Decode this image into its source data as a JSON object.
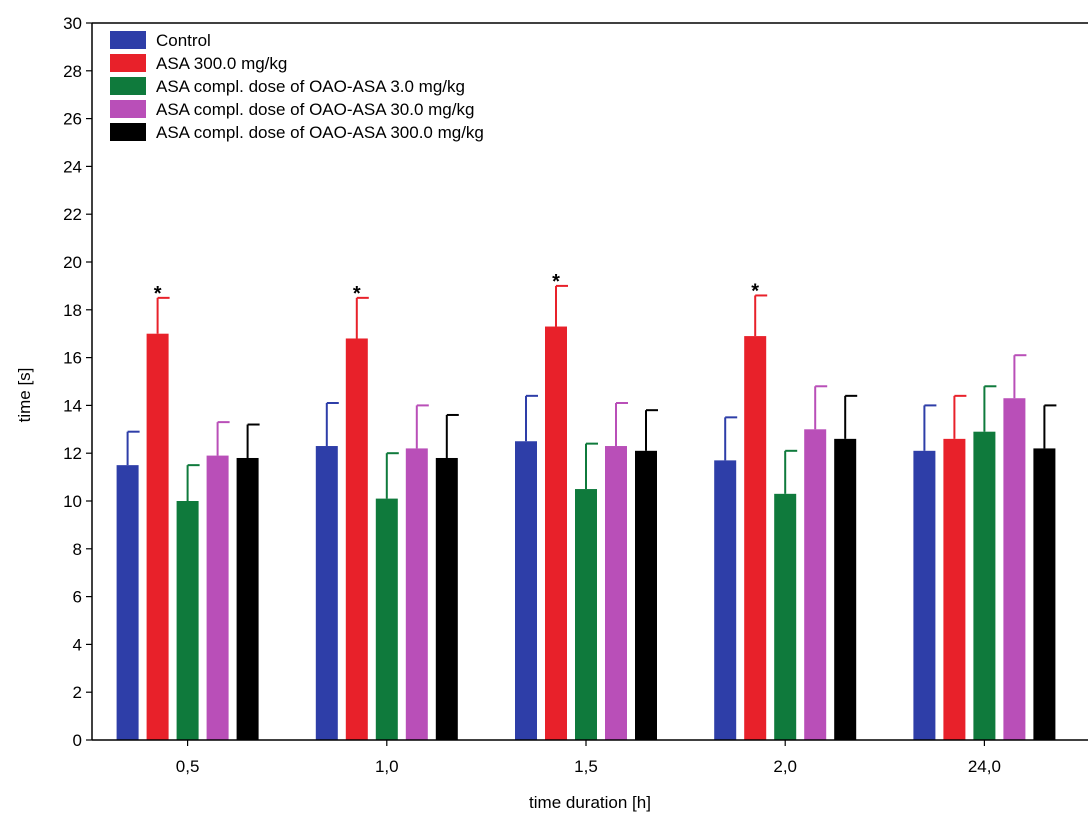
{
  "chart_data": {
    "type": "bar",
    "xlabel": "time duration [h]",
    "ylabel": "time [s]",
    "ylim": [
      0,
      30
    ],
    "yticks": [
      0,
      2,
      4,
      6,
      8,
      10,
      12,
      14,
      16,
      18,
      20,
      22,
      24,
      26,
      28,
      30
    ],
    "categories": [
      "0,5",
      "1,0",
      "1,5",
      "2,0",
      "24,0"
    ],
    "legend_position": "top-left",
    "grid": false,
    "significance_marker": "*",
    "series": [
      {
        "name": "Control",
        "color": "#2e3ea8",
        "values": [
          11.5,
          12.3,
          12.5,
          11.7,
          12.1
        ],
        "errors": [
          1.4,
          1.8,
          1.9,
          1.8,
          1.9
        ],
        "significant": [
          false,
          false,
          false,
          false,
          false
        ]
      },
      {
        "name": "ASA 300.0 mg/kg",
        "color": "#e8212a",
        "values": [
          17.0,
          16.8,
          17.3,
          16.9,
          12.6
        ],
        "errors": [
          1.5,
          1.7,
          1.7,
          1.7,
          1.8
        ],
        "significant": [
          true,
          true,
          true,
          true,
          false
        ]
      },
      {
        "name": "ASA compl. dose of OAO-ASA 3.0 mg/kg",
        "color": "#0f7a3c",
        "values": [
          10.0,
          10.1,
          10.5,
          10.3,
          12.9
        ],
        "errors": [
          1.5,
          1.9,
          1.9,
          1.8,
          1.9
        ],
        "significant": [
          false,
          false,
          false,
          false,
          false
        ]
      },
      {
        "name": "ASA compl. dose of OAO-ASA 30.0 mg/kg",
        "color": "#b94fb8",
        "values": [
          11.9,
          12.2,
          12.3,
          13.0,
          14.3
        ],
        "errors": [
          1.4,
          1.8,
          1.8,
          1.8,
          1.8
        ],
        "significant": [
          false,
          false,
          false,
          false,
          false
        ]
      },
      {
        "name": "ASA compl. dose of OAO-ASA 300.0 mg/kg",
        "color": "#000000",
        "values": [
          11.8,
          11.8,
          12.1,
          12.6,
          12.2
        ],
        "errors": [
          1.4,
          1.8,
          1.7,
          1.8,
          1.8
        ],
        "significant": [
          false,
          false,
          false,
          false,
          false
        ]
      }
    ]
  }
}
